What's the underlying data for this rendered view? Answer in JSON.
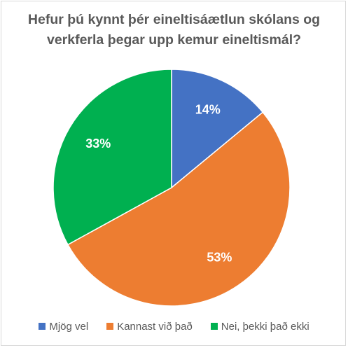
{
  "chart_data": {
    "type": "pie",
    "title_lines": [
      "Hefur þú kynnt þér eineltisáætlun skólans og",
      "verkferla þegar upp kemur eineltismál?"
    ],
    "categories": [
      "Mjög vel",
      "Kannast við það",
      "Nei, þekki það ekki"
    ],
    "values": [
      14,
      53,
      33
    ],
    "data_labels": [
      "14%",
      "53%",
      "33%"
    ],
    "colors": [
      "#4472C4",
      "#ED7D31",
      "#00B050"
    ],
    "start_angle_deg": 0,
    "direction": "clockwise",
    "legend_position": "bottom"
  }
}
